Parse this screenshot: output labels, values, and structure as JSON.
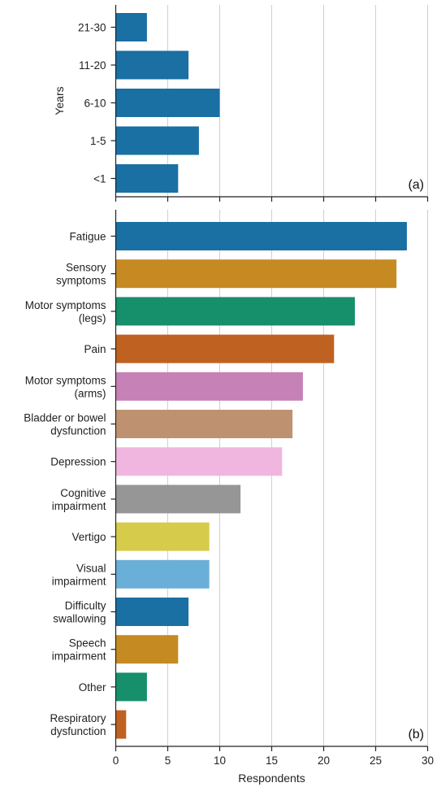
{
  "chart_data": [
    {
      "type": "bar",
      "orientation": "horizontal",
      "panel_label": "(a)",
      "ylabel": "Years",
      "xlabel": "",
      "xlim": [
        0,
        30
      ],
      "x_ticks": [
        0,
        5,
        10,
        15,
        20,
        25,
        30
      ],
      "grid": "vertical",
      "categories": [
        "21-30",
        "11-20",
        "6-10",
        "1-5",
        "<1"
      ],
      "values": [
        3,
        7,
        10,
        8,
        6
      ],
      "colors": [
        "#1a6fa3",
        "#1a6fa3",
        "#1a6fa3",
        "#1a6fa3",
        "#1a6fa3"
      ]
    },
    {
      "type": "bar",
      "orientation": "horizontal",
      "panel_label": "(b)",
      "xlabel": "Respondents",
      "ylabel": "",
      "xlim": [
        0,
        30
      ],
      "x_ticks": [
        "0",
        "5",
        "10",
        "15",
        "20",
        "25",
        "30"
      ],
      "grid": "vertical",
      "categories": [
        [
          "Fatigue"
        ],
        [
          "Sensory",
          "symptoms"
        ],
        [
          "Motor symptoms",
          "(legs)"
        ],
        [
          "Pain"
        ],
        [
          "Motor symptoms",
          "(arms)"
        ],
        [
          "Bladder or bowel",
          "dysfunction"
        ],
        [
          "Depression"
        ],
        [
          "Cognitive",
          "impairment"
        ],
        [
          "Vertigo"
        ],
        [
          "Visual",
          "impairment"
        ],
        [
          "Difficulty",
          "swallowing"
        ],
        [
          "Speech",
          "impairment"
        ],
        [
          "Other"
        ],
        [
          "Respiratory",
          "dysfunction"
        ]
      ],
      "values": [
        28,
        27,
        23,
        21,
        18,
        17,
        16,
        12,
        9,
        9,
        7,
        6,
        3,
        1
      ],
      "colors": [
        "#1a6fa3",
        "#c68a22",
        "#168f6b",
        "#bf6221",
        "#c681b6",
        "#be9270",
        "#f0b6df",
        "#969696",
        "#d6cb4a",
        "#6aafd8",
        "#1a6fa3",
        "#c68a22",
        "#168f6b",
        "#bf6221"
      ]
    }
  ]
}
